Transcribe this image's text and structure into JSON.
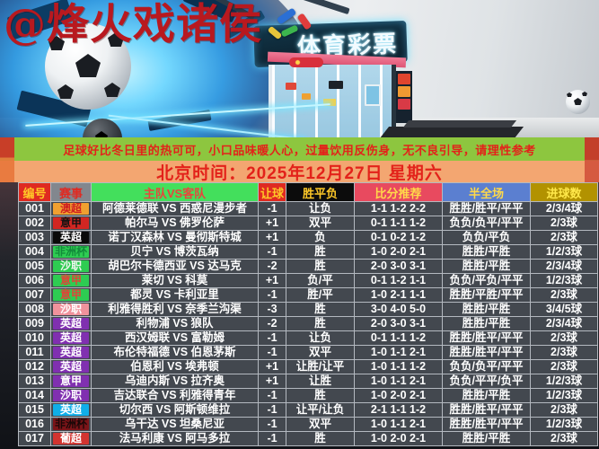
{
  "watermark": "@烽火戏诸侯",
  "banner": {
    "store_sign": "体育彩票"
  },
  "notice": "足球好比冬日里的热可可，小口品味暖人心，过量饮用反伤身，无不良引导，请理性参考",
  "datetime_bar": "北京时间：2025年12月27日 星期六",
  "colors": {
    "notice_bar_bg": "#8dc63f",
    "datetime_bar_bg": "#f3a671",
    "notice_text": "#e3221a",
    "table_row_bg": "#43484f",
    "grid_line": "#b4b9c0"
  },
  "table": {
    "headers": [
      {
        "label": "编号",
        "bg": "#df2a21",
        "fg": "#ffc928"
      },
      {
        "label": "赛事",
        "bg": "#82878e",
        "fg": "#e02a22"
      },
      {
        "label": "主队VS客队",
        "bg": "#43df5c",
        "fg": "#e8453c"
      },
      {
        "label": "让球",
        "bg": "#df2a21",
        "fg": "#ffc928"
      },
      {
        "label": "胜平负",
        "bg": "#0c0c0c",
        "fg": "#ffc928"
      },
      {
        "label": "比分推荐",
        "bg": "#e84a5f",
        "fg": "#ffd94a"
      },
      {
        "label": "半全场",
        "bg": "#5b7fd0",
        "fg": "#ffd94a"
      },
      {
        "label": "进球数",
        "bg": "#b29200",
        "fg": "#ffe84a"
      }
    ],
    "rows": [
      {
        "no": "001",
        "league": "澳超",
        "league_bg": "#f0a030",
        "league_fg": "#d02020",
        "teams": "阿德莱德联 VS 西惑尼漫步者",
        "handicap": "-1",
        "wdl": "让负",
        "score": "1-1 1-2 2-2",
        "half_full": "胜胜/胜平/平平",
        "goals": "2/3/4球"
      },
      {
        "no": "002",
        "league": "意甲",
        "league_bg": "#d22622",
        "league_fg": "#141414",
        "teams": "帕尔马 VS 佛罗伦萨",
        "handicap": "+1",
        "wdl": "双平",
        "score": "0-1 1-1 1-2",
        "half_full": "负负/负平/平平",
        "goals": "2/3球"
      },
      {
        "no": "003",
        "league": "英超",
        "league_bg": "#0a0a0a",
        "league_fg": "#ffffff",
        "teams": "诺丁汉森林 VS 曼彻斯特城",
        "handicap": "+1",
        "wdl": "负",
        "score": "0-1 0-2 1-2",
        "half_full": "负负/平负",
        "goals": "2/3球"
      },
      {
        "no": "004",
        "league": "非洲杯",
        "league_bg": "#2ecc52",
        "league_fg": "#128a3a",
        "teams": "贝宁 VS 博茨瓦纳",
        "handicap": "-1",
        "wdl": "胜",
        "score": "1-0 2-0 2-1",
        "half_full": "胜胜/平胜",
        "goals": "1/2/3球"
      },
      {
        "no": "005",
        "league": "沙职",
        "league_bg": "#2ecc52",
        "league_fg": "#f2f5f2",
        "teams": "胡巴尔卡德西亚 VS 达马克",
        "handicap": "-2",
        "wdl": "胜",
        "score": "2-0 3-0 3-1",
        "half_full": "胜胜/平胜",
        "goals": "2/3/4球"
      },
      {
        "no": "006",
        "league": "意甲",
        "league_bg": "#2ecc52",
        "league_fg": "#e04438",
        "teams": "莱切 VS 科莫",
        "handicap": "+1",
        "wdl": "负/平",
        "score": "0-1 1-2 1-1",
        "half_full": "负负/平负/平平",
        "goals": "1/2/3球"
      },
      {
        "no": "007",
        "league": "意甲",
        "league_bg": "#2ecc52",
        "league_fg": "#e04438",
        "teams": "都灵 VS 卡利亚里",
        "handicap": "-1",
        "wdl": "胜/平",
        "score": "1-0 2-1 1-1",
        "half_full": "胜胜/平胜/平平",
        "goals": "2/3球"
      },
      {
        "no": "008",
        "league": "沙职",
        "league_bg": "#f0929c",
        "league_fg": "#ffffff",
        "teams": "利雅得胜利 VS 奈季兰沟渠",
        "handicap": "-3",
        "wdl": "胜",
        "score": "3-0 4-0 5-0",
        "half_full": "胜胜/平胜",
        "goals": "3/4/5球"
      },
      {
        "no": "009",
        "league": "英超",
        "league_bg": "#8030b0",
        "league_fg": "#ffffff",
        "teams": "利物浦 VS 狼队",
        "handicap": "-2",
        "wdl": "胜",
        "score": "2-0 3-0 3-1",
        "half_full": "胜胜/平胜",
        "goals": "2/3/4球"
      },
      {
        "no": "010",
        "league": "英超",
        "league_bg": "#8030b0",
        "league_fg": "#ffffff",
        "teams": "西汉姆联 VS 富勒姆",
        "handicap": "-1",
        "wdl": "让负",
        "score": "0-1 1-1 1-2",
        "half_full": "胜胜/胜平/平平",
        "goals": "2/3球"
      },
      {
        "no": "011",
        "league": "英超",
        "league_bg": "#8030b0",
        "league_fg": "#ffffff",
        "teams": "布伦特福德 VS 伯恩茅斯",
        "handicap": "-1",
        "wdl": "双平",
        "score": "1-0 1-1 2-1",
        "half_full": "胜胜/胜平/平平",
        "goals": "2/3球"
      },
      {
        "no": "012",
        "league": "英超",
        "league_bg": "#8030b0",
        "league_fg": "#ffffff",
        "teams": "伯恩利 VS 埃弗顿",
        "handicap": "+1",
        "wdl": "让胜/让平",
        "score": "1-0 1-1 1-2",
        "half_full": "负负/负平/平平",
        "goals": "2/3球"
      },
      {
        "no": "013",
        "league": "意甲",
        "league_bg": "#8030b0",
        "league_fg": "#ffffff",
        "teams": "乌迪内斯 VS 拉齐奥",
        "handicap": "+1",
        "wdl": "让胜",
        "score": "1-0 1-1 2-1",
        "half_full": "负负/平平/负平",
        "goals": "1/2/3球"
      },
      {
        "no": "014",
        "league": "沙职",
        "league_bg": "#8030b0",
        "league_fg": "#ffffff",
        "teams": "吉达联合 VS 利雅得青年",
        "handicap": "-1",
        "wdl": "胜",
        "score": "1-0 2-0 2-1",
        "half_full": "胜胜/平胜",
        "goals": "1/2/3球"
      },
      {
        "no": "015",
        "league": "英超",
        "league_bg": "#10aee8",
        "league_fg": "#ffffff",
        "teams": "切尔西 VS 阿斯顿维拉",
        "handicap": "-1",
        "wdl": "让平/让负",
        "score": "2-1 1-1 1-2",
        "half_full": "胜胜/胜平/平平",
        "goals": "2/3球"
      },
      {
        "no": "016",
        "league": "非洲杯",
        "league_bg": "#7a1418",
        "league_fg": "#1a0808",
        "teams": "乌干达 VS 坦桑尼亚",
        "handicap": "-1",
        "wdl": "双平",
        "score": "1-0 1-1 2-1",
        "half_full": "胜胜/胜平/平平",
        "goals": "1/2/3球"
      },
      {
        "no": "017",
        "league": "葡超",
        "league_bg": "#d23430",
        "league_fg": "#ffffff",
        "teams": "法马利康 VS 阿马多拉",
        "handicap": "-1",
        "wdl": "胜",
        "score": "1-0 2-0 2-1",
        "half_full": "胜胜/平胜",
        "goals": "2/3球"
      }
    ]
  }
}
